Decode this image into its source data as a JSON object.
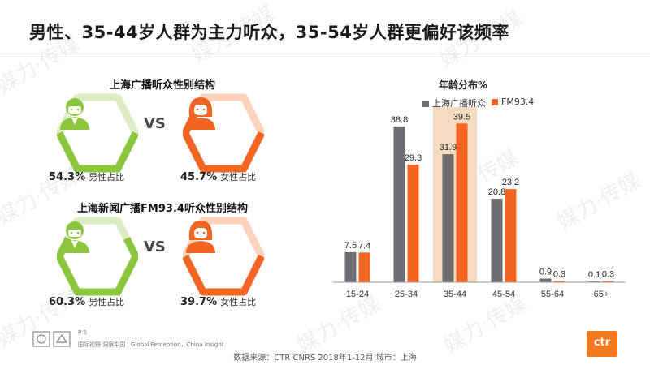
{
  "title": "男性、35-44岁人群为主力听众，35-54岁人群更偏好该频率",
  "sections": [
    {
      "heading": "上海广播听众性别结构",
      "vs": "VS",
      "male": {
        "pct": "54.3%",
        "label": "男性占比"
      },
      "female": {
        "pct": "45.7%",
        "label": "女性占比"
      }
    },
    {
      "heading": "上海新闻广播FM93.4听众性别结构",
      "vs": "VS",
      "male": {
        "pct": "60.3%",
        "label": "男性占比"
      },
      "female": {
        "pct": "39.7%",
        "label": "女性占比"
      }
    }
  ],
  "colors": {
    "green": "#8cc63f",
    "green_light": "#dcecc4",
    "orange": "#f26522",
    "orange_light": "#fbd3bd",
    "gray": "#6d6e71",
    "highlight": "#f5dcc0"
  },
  "chart_data": {
    "type": "bar",
    "title": "年龄分布%",
    "categories": [
      "15-24",
      "25-34",
      "35-44",
      "45-54",
      "55-64",
      "65+"
    ],
    "series": [
      {
        "name": "上海广播听众",
        "values": [
          7.5,
          38.8,
          31.9,
          20.8,
          0.9,
          0.1
        ],
        "color": "#6d6e71"
      },
      {
        "name": "FM93.4",
        "values": [
          7.4,
          29.3,
          39.5,
          23.2,
          0.3,
          0.3
        ],
        "color": "#f26522"
      }
    ],
    "highlight_category": "35-44",
    "ylim": [
      0,
      42
    ],
    "grid": false,
    "legend_position": "top"
  },
  "footer": {
    "page": "P 5",
    "tagline": "国际视野  洞察中国 | Global Perception，China Insight",
    "source": "数据来源：CTR CNRS 2018年1-12月  城市：上海",
    "logo_text": "ctr"
  },
  "watermark_text": "媒力·传媒"
}
